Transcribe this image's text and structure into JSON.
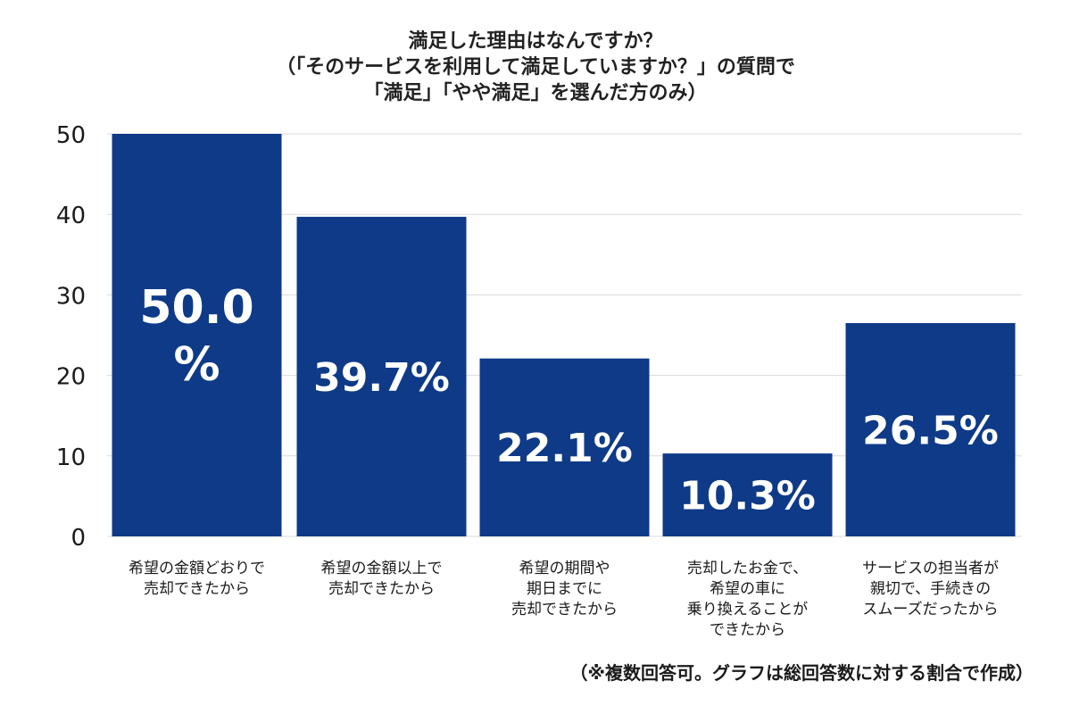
{
  "chart_data": {
    "type": "bar",
    "title_lines": [
      "満足した理由はなんですか？",
      "（「そのサービスを利用して満足していますか？」の質問で",
      "「満足」「やや満足」を選んだ方のみ）"
    ],
    "categories": [
      [
        "希望の金額どおりで",
        "売却できたから"
      ],
      [
        "希望の金額以上で",
        "売却できたから"
      ],
      [
        "希望の期間や",
        "期日までに",
        "売却できたから"
      ],
      [
        "売却したお金で、",
        "希望の車に",
        "乗り換えることが",
        "できたから"
      ],
      [
        "サービスの担当者が",
        "親切で、手続きの",
        "スムーズだったから"
      ]
    ],
    "values": [
      50.0,
      39.7,
      22.1,
      10.3,
      26.5
    ],
    "data_labels": [
      [
        "50.0",
        "%"
      ],
      [
        "39.7%"
      ],
      [
        "22.1%"
      ],
      [
        "10.3%"
      ],
      [
        "26.5%"
      ]
    ],
    "yticks": [
      0,
      10,
      20,
      30,
      40,
      50
    ],
    "ylim": [
      0,
      50
    ],
    "xlabel": "",
    "ylabel": "",
    "grid": true,
    "bar_color": "#0e3a87",
    "grid_color": "#d9d9d9"
  },
  "footnote": "（※複数回答可。グラフは総回答数に対する割合で作成）"
}
